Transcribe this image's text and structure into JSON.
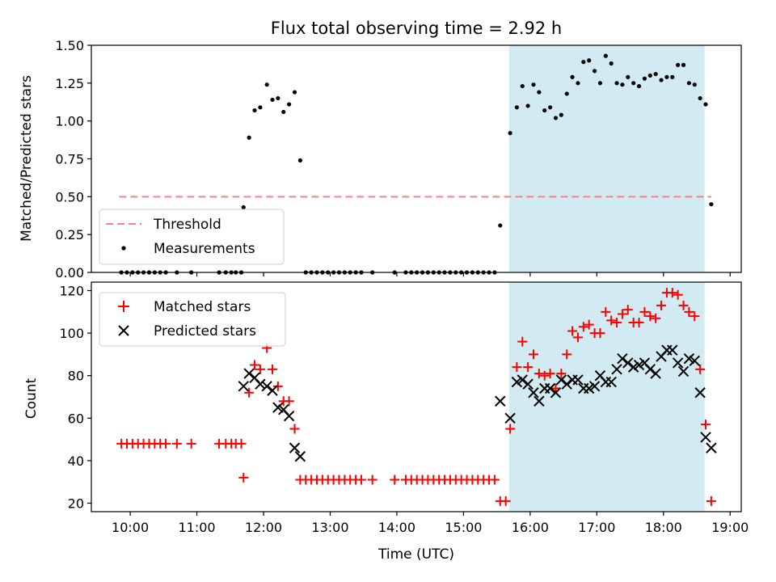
{
  "chart_data": [
    {
      "type": "scatter",
      "title": "Flux total observing time = 2.92 h",
      "ylabel": "Matched/Predicted stars",
      "xlabel": "",
      "xlim": [
        "09:25",
        "19:10"
      ],
      "ylim": [
        0,
        1.5
      ],
      "yticks": [
        0.0,
        0.25,
        0.5,
        0.75,
        1.0,
        1.25,
        1.5
      ],
      "ytick_labels": [
        "0.00",
        "0.25",
        "0.50",
        "0.75",
        "1.00",
        "1.25",
        "1.50"
      ],
      "xticks": [
        "10:00",
        "11:00",
        "12:00",
        "13:00",
        "14:00",
        "15:00",
        "16:00",
        "17:00",
        "18:00",
        "19:00"
      ],
      "shaded_region": {
        "start": "15:41",
        "end": "18:37",
        "color": "#add8e6"
      },
      "threshold": {
        "name": "Threshold",
        "value": 0.5,
        "start": "09:50",
        "end": "18:43",
        "color": "#ff7f7f"
      },
      "legend": {
        "placement": "lower-left",
        "entries": [
          "Threshold",
          "Measurements"
        ]
      },
      "series": [
        {
          "name": "Measurements",
          "color": "#000000",
          "marker": "dot",
          "points": [
            [
              "09:52",
              0
            ],
            [
              "09:57",
              0
            ],
            [
              "10:02",
              0
            ],
            [
              "10:07",
              0
            ],
            [
              "10:12",
              0
            ],
            [
              "10:17",
              0
            ],
            [
              "10:22",
              0
            ],
            [
              "10:27",
              0
            ],
            [
              "10:32",
              0
            ],
            [
              "10:42",
              0
            ],
            [
              "10:55",
              0
            ],
            [
              "11:20",
              0
            ],
            [
              "11:26",
              0
            ],
            [
              "11:31",
              0
            ],
            [
              "11:35",
              0
            ],
            [
              "11:40",
              0
            ],
            [
              "11:42",
              0.43
            ],
            [
              "11:47",
              0.89
            ],
            [
              "11:52",
              1.07
            ],
            [
              "11:57",
              1.09
            ],
            [
              "12:03",
              1.24
            ],
            [
              "12:08",
              1.14
            ],
            [
              "12:13",
              1.15
            ],
            [
              "12:18",
              1.06
            ],
            [
              "12:23",
              1.11
            ],
            [
              "12:28",
              1.19
            ],
            [
              "12:33",
              0.74
            ],
            [
              "12:38",
              0
            ],
            [
              "12:43",
              0
            ],
            [
              "12:48",
              0
            ],
            [
              "12:53",
              0
            ],
            [
              "12:58",
              0
            ],
            [
              "13:03",
              0
            ],
            [
              "13:08",
              0
            ],
            [
              "13:13",
              0
            ],
            [
              "13:18",
              0
            ],
            [
              "13:23",
              0
            ],
            [
              "13:28",
              0
            ],
            [
              "13:38",
              0
            ],
            [
              "13:58",
              0
            ],
            [
              "14:08",
              0
            ],
            [
              "14:13",
              0
            ],
            [
              "14:18",
              0
            ],
            [
              "14:23",
              0
            ],
            [
              "14:28",
              0
            ],
            [
              "14:33",
              0
            ],
            [
              "14:38",
              0
            ],
            [
              "14:43",
              0
            ],
            [
              "14:48",
              0
            ],
            [
              "14:53",
              0
            ],
            [
              "14:58",
              0
            ],
            [
              "15:03",
              0
            ],
            [
              "15:08",
              0
            ],
            [
              "15:13",
              0
            ],
            [
              "15:18",
              0
            ],
            [
              "15:23",
              0
            ],
            [
              "15:28",
              0
            ],
            [
              "15:33",
              0.31
            ],
            [
              "15:42",
              0.92
            ],
            [
              "15:48",
              1.09
            ],
            [
              "15:53",
              1.23
            ],
            [
              "15:58",
              1.1
            ],
            [
              "16:03",
              1.24
            ],
            [
              "16:08",
              1.19
            ],
            [
              "16:13",
              1.07
            ],
            [
              "16:18",
              1.09
            ],
            [
              "16:23",
              1.02
            ],
            [
              "16:28",
              1.04
            ],
            [
              "16:33",
              1.18
            ],
            [
              "16:38",
              1.29
            ],
            [
              "16:43",
              1.25
            ],
            [
              "16:48",
              1.39
            ],
            [
              "16:53",
              1.4
            ],
            [
              "16:58",
              1.33
            ],
            [
              "17:03",
              1.25
            ],
            [
              "17:08",
              1.43
            ],
            [
              "17:13",
              1.38
            ],
            [
              "17:18",
              1.25
            ],
            [
              "17:23",
              1.24
            ],
            [
              "17:28",
              1.29
            ],
            [
              "17:33",
              1.25
            ],
            [
              "17:38",
              1.23
            ],
            [
              "17:43",
              1.28
            ],
            [
              "17:48",
              1.3
            ],
            [
              "17:53",
              1.31
            ],
            [
              "17:58",
              1.27
            ],
            [
              "18:03",
              1.29
            ],
            [
              "18:08",
              1.29
            ],
            [
              "18:13",
              1.37
            ],
            [
              "18:18",
              1.37
            ],
            [
              "18:23",
              1.25
            ],
            [
              "18:28",
              1.24
            ],
            [
              "18:33",
              1.15
            ],
            [
              "18:38",
              1.11
            ],
            [
              "18:43",
              0.45
            ]
          ]
        }
      ]
    },
    {
      "type": "scatter",
      "title": "",
      "ylabel": "Count",
      "xlabel": "Time (UTC)",
      "xlim": [
        "09:25",
        "19:10"
      ],
      "ylim": [
        16,
        124
      ],
      "yticks": [
        20,
        40,
        60,
        80,
        100,
        120
      ],
      "ytick_labels": [
        "20",
        "40",
        "60",
        "80",
        "100",
        "120"
      ],
      "xticks": [
        "10:00",
        "11:00",
        "12:00",
        "13:00",
        "14:00",
        "15:00",
        "16:00",
        "17:00",
        "18:00",
        "19:00"
      ],
      "shaded_region": {
        "start": "15:41",
        "end": "18:37",
        "color": "#add8e6"
      },
      "legend": {
        "placement": "upper-left",
        "entries": [
          "Matched stars",
          "Predicted stars"
        ]
      },
      "series": [
        {
          "name": "Matched stars",
          "color": "#ff0000",
          "marker": "plus",
          "points": [
            [
              "09:52",
              48
            ],
            [
              "09:57",
              48
            ],
            [
              "10:02",
              48
            ],
            [
              "10:07",
              48
            ],
            [
              "10:12",
              48
            ],
            [
              "10:17",
              48
            ],
            [
              "10:22",
              48
            ],
            [
              "10:27",
              48
            ],
            [
              "10:32",
              48
            ],
            [
              "10:42",
              48
            ],
            [
              "10:55",
              48
            ],
            [
              "11:20",
              48
            ],
            [
              "11:26",
              48
            ],
            [
              "11:31",
              48
            ],
            [
              "11:35",
              48
            ],
            [
              "11:40",
              48
            ],
            [
              "11:42",
              32
            ],
            [
              "11:47",
              72
            ],
            [
              "11:52",
              85
            ],
            [
              "11:57",
              83
            ],
            [
              "12:03",
              93
            ],
            [
              "12:08",
              83
            ],
            [
              "12:13",
              75
            ],
            [
              "12:18",
              68
            ],
            [
              "12:23",
              68
            ],
            [
              "12:28",
              55
            ],
            [
              "12:33",
              31
            ],
            [
              "12:38",
              31
            ],
            [
              "12:43",
              31
            ],
            [
              "12:48",
              31
            ],
            [
              "12:53",
              31
            ],
            [
              "12:58",
              31
            ],
            [
              "13:03",
              31
            ],
            [
              "13:08",
              31
            ],
            [
              "13:13",
              31
            ],
            [
              "13:18",
              31
            ],
            [
              "13:23",
              31
            ],
            [
              "13:28",
              31
            ],
            [
              "13:38",
              31
            ],
            [
              "13:58",
              31
            ],
            [
              "14:08",
              31
            ],
            [
              "14:13",
              31
            ],
            [
              "14:18",
              31
            ],
            [
              "14:23",
              31
            ],
            [
              "14:28",
              31
            ],
            [
              "14:33",
              31
            ],
            [
              "14:38",
              31
            ],
            [
              "14:43",
              31
            ],
            [
              "14:48",
              31
            ],
            [
              "14:53",
              31
            ],
            [
              "14:58",
              31
            ],
            [
              "15:03",
              31
            ],
            [
              "15:08",
              31
            ],
            [
              "15:13",
              31
            ],
            [
              "15:18",
              31
            ],
            [
              "15:23",
              31
            ],
            [
              "15:28",
              31
            ],
            [
              "15:33",
              21
            ],
            [
              "15:38",
              21
            ],
            [
              "15:42",
              55
            ],
            [
              "15:48",
              84
            ],
            [
              "15:53",
              96
            ],
            [
              "15:58",
              84
            ],
            [
              "16:03",
              90
            ],
            [
              "16:08",
              81
            ],
            [
              "16:13",
              80
            ],
            [
              "16:18",
              81
            ],
            [
              "16:23",
              74
            ],
            [
              "16:28",
              81
            ],
            [
              "16:33",
              90
            ],
            [
              "16:38",
              101
            ],
            [
              "16:43",
              98
            ],
            [
              "16:48",
              103
            ],
            [
              "16:53",
              104
            ],
            [
              "16:58",
              100
            ],
            [
              "17:03",
              100
            ],
            [
              "17:08",
              110
            ],
            [
              "17:13",
              106
            ],
            [
              "17:18",
              105
            ],
            [
              "17:23",
              109
            ],
            [
              "17:28",
              111
            ],
            [
              "17:33",
              105
            ],
            [
              "17:38",
              105
            ],
            [
              "17:43",
              110
            ],
            [
              "17:48",
              108
            ],
            [
              "17:53",
              107
            ],
            [
              "17:58",
              113
            ],
            [
              "18:03",
              119
            ],
            [
              "18:08",
              119
            ],
            [
              "18:13",
              118
            ],
            [
              "18:18",
              113
            ],
            [
              "18:23",
              110
            ],
            [
              "18:28",
              108
            ],
            [
              "18:33",
              83
            ],
            [
              "18:38",
              57
            ],
            [
              "18:43",
              21
            ]
          ]
        },
        {
          "name": "Predicted stars",
          "color": "#000000",
          "marker": "x",
          "points": [
            [
              "11:42",
              75
            ],
            [
              "11:47",
              81
            ],
            [
              "11:52",
              79
            ],
            [
              "11:57",
              76
            ],
            [
              "12:03",
              75
            ],
            [
              "12:08",
              73
            ],
            [
              "12:13",
              65
            ],
            [
              "12:18",
              64
            ],
            [
              "12:23",
              61
            ],
            [
              "12:28",
              46
            ],
            [
              "12:33",
              42
            ],
            [
              "15:33",
              68
            ],
            [
              "15:42",
              60
            ],
            [
              "15:48",
              77
            ],
            [
              "15:53",
              78
            ],
            [
              "15:58",
              76
            ],
            [
              "16:03",
              72
            ],
            [
              "16:08",
              68
            ],
            [
              "16:13",
              74
            ],
            [
              "16:18",
              74
            ],
            [
              "16:23",
              72
            ],
            [
              "16:28",
              78
            ],
            [
              "16:33",
              76
            ],
            [
              "16:38",
              78
            ],
            [
              "16:43",
              78
            ],
            [
              "16:48",
              74
            ],
            [
              "16:53",
              74
            ],
            [
              "16:58",
              75
            ],
            [
              "17:03",
              80
            ],
            [
              "17:08",
              77
            ],
            [
              "17:13",
              77
            ],
            [
              "17:18",
              83
            ],
            [
              "17:23",
              88
            ],
            [
              "17:28",
              86
            ],
            [
              "17:33",
              84
            ],
            [
              "17:38",
              85
            ],
            [
              "17:43",
              86
            ],
            [
              "17:48",
              83
            ],
            [
              "17:53",
              81
            ],
            [
              "17:58",
              89
            ],
            [
              "18:03",
              92
            ],
            [
              "18:08",
              92
            ],
            [
              "18:13",
              86
            ],
            [
              "18:18",
              82
            ],
            [
              "18:23",
              88
            ],
            [
              "18:28",
              87
            ],
            [
              "18:33",
              72
            ],
            [
              "18:38",
              51
            ],
            [
              "18:43",
              46
            ]
          ]
        }
      ]
    }
  ]
}
